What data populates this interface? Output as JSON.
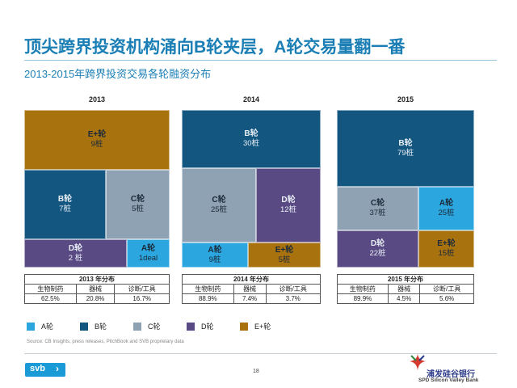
{
  "title": "顶尖跨界投资机构涌向B轮夹层，A轮交易量翻一番",
  "subtitle": "2013-2015年跨界投资交易各轮融资分布",
  "colors": {
    "A": "#2ba6de",
    "B": "#13567f",
    "C": "#8fa2b4",
    "D": "#5a4a83",
    "E": "#a8720f",
    "accent": "#1b7fb5"
  },
  "chart_data": [
    {
      "type": "treemap",
      "year": "2013",
      "tiles": [
        {
          "key": "E",
          "name": "E+轮",
          "count_label": "9桩",
          "value": 9
        },
        {
          "key": "B",
          "name": "B轮",
          "count_label": "7桩",
          "value": 7
        },
        {
          "key": "C",
          "name": "C轮",
          "count_label": "5桩",
          "value": 5
        },
        {
          "key": "D",
          "name": "D轮",
          "count_label": "2 桩",
          "value": 2
        },
        {
          "key": "A",
          "name": "A轮",
          "count_label": "1deal",
          "value": 1
        }
      ],
      "table": {
        "title": "2013 年分布",
        "headers": [
          "生物制药",
          "器械",
          "诊断/工具"
        ],
        "values": [
          "62.5%",
          "20.8%",
          "16.7%"
        ]
      }
    },
    {
      "type": "treemap",
      "year": "2014",
      "tiles": [
        {
          "key": "B",
          "name": "B轮",
          "count_label": "30桩",
          "value": 30
        },
        {
          "key": "C",
          "name": "C轮",
          "count_label": "25桩",
          "value": 25
        },
        {
          "key": "D",
          "name": "D轮",
          "count_label": "12桩",
          "value": 12
        },
        {
          "key": "A",
          "name": "A轮",
          "count_label": "9桩",
          "value": 9
        },
        {
          "key": "E",
          "name": "E+轮",
          "count_label": "5桩",
          "value": 5
        }
      ],
      "table": {
        "title": "2014 年分布",
        "headers": [
          "生物制药",
          "器械",
          "诊断/工具"
        ],
        "values": [
          "88.9%",
          "7.4%",
          "3.7%"
        ]
      }
    },
    {
      "type": "treemap",
      "year": "2015",
      "tiles": [
        {
          "key": "B",
          "name": "B轮",
          "count_label": "79桩",
          "value": 79
        },
        {
          "key": "C",
          "name": "C轮",
          "count_label": "37桩",
          "value": 37
        },
        {
          "key": "A",
          "name": "A轮",
          "count_label": "25桩",
          "value": 25
        },
        {
          "key": "D",
          "name": "D轮",
          "count_label": "22桩",
          "value": 22
        },
        {
          "key": "E",
          "name": "E+轮",
          "count_label": "15桩",
          "value": 15
        }
      ],
      "table": {
        "title": "2015 年分布",
        "headers": [
          "生物制药",
          "器械",
          "诊断/工具"
        ],
        "values": [
          "89.9%",
          "4.5%",
          "5.6%"
        ]
      }
    }
  ],
  "legend": [
    {
      "key": "A",
      "label": "A轮"
    },
    {
      "key": "B",
      "label": "B轮"
    },
    {
      "key": "C",
      "label": "C轮"
    },
    {
      "key": "D",
      "label": "D轮"
    },
    {
      "key": "E",
      "label": "E+轮"
    }
  ],
  "source": "Source: CB Insights, press releases, PitchBook and SVB proprietary data",
  "page_number": "18",
  "footer": {
    "svb_logo": "svb",
    "bank_name_cn": "浦发硅谷银行",
    "bank_name_en": "SPD Silicon Valley Bank",
    "bank_logo_icon": "spd-svb-logo-icon"
  }
}
